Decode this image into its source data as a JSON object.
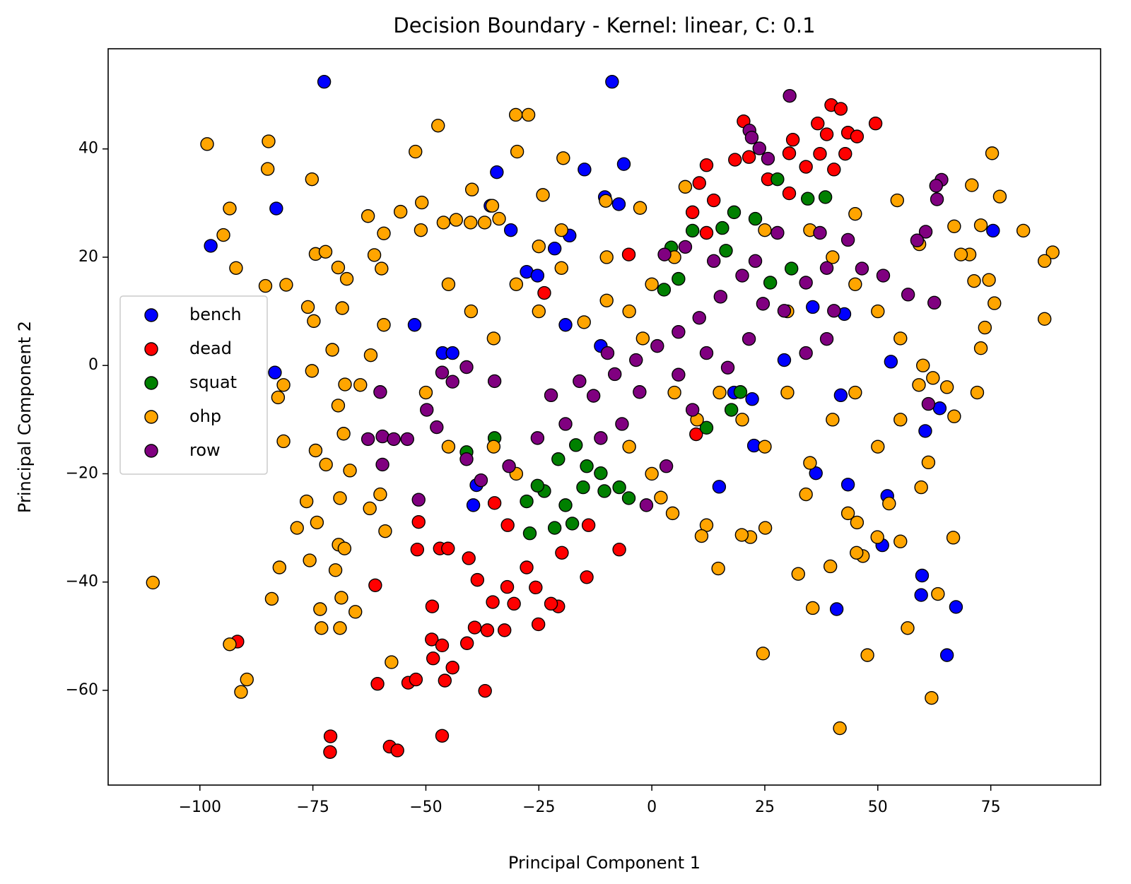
{
  "chart_data": {
    "type": "scatter",
    "title": "Decision Boundary - Kernel: linear, C: 0.1",
    "x_label": "Principal Component 1",
    "y_label": "Principal Component 2",
    "xlim": [
      -120.3,
      99.3
    ],
    "ylim": [
      -77.5,
      58.5
    ],
    "xticks": [
      {
        "value": -100,
        "label": "−100"
      },
      {
        "value": -75,
        "label": "−75"
      },
      {
        "value": -50,
        "label": "−50"
      },
      {
        "value": -25,
        "label": "−25"
      },
      0,
      25,
      50,
      75
    ],
    "yticks": [
      {
        "value": -60,
        "label": "−60"
      },
      {
        "value": -40,
        "label": "−40"
      },
      {
        "value": -20,
        "label": "−20"
      },
      0,
      20,
      40
    ],
    "legend": "center left",
    "edge_color": "#000000",
    "series": [
      {
        "name": "bench",
        "color": "#0000ff",
        "x": [
          -72.5,
          -8.8,
          -97.6,
          -83.1,
          -83.4,
          -34.3,
          -14.9,
          -6.2,
          -10.4,
          -7.3,
          -35.7,
          -31.2,
          -18.2,
          -21.5,
          75.5,
          59.8,
          59.6,
          67.3,
          65.3,
          40.9,
          51.0,
          52.1,
          43.4,
          22.6,
          14.9,
          18.2,
          22.2,
          -52.5,
          -46.3,
          -44.1,
          -38.8,
          -39.5,
          -27.7,
          -25.3,
          35.6,
          42.6,
          41.8,
          36.3,
          63.7,
          60.5,
          52.9,
          29.3,
          -11.3,
          -19.1
        ],
        "values": [
          52.4,
          52.4,
          22.1,
          29.0,
          -1.3,
          35.7,
          36.2,
          37.2,
          31.1,
          29.8,
          29.5,
          25.0,
          24.0,
          21.6,
          24.9,
          -38.8,
          -42.4,
          -44.6,
          -53.5,
          -45.0,
          -33.2,
          -24.1,
          -22.0,
          -14.8,
          -22.4,
          -5.0,
          -6.2,
          7.5,
          2.3,
          2.3,
          -22.1,
          -25.8,
          17.3,
          16.6,
          10.8,
          9.5,
          -5.5,
          -19.9,
          -7.9,
          -12.1,
          0.7,
          1.0,
          3.6,
          7.5
        ]
      },
      {
        "name": "dead",
        "color": "#ff0000",
        "x": [
          -71.1,
          -71.2,
          -58.0,
          -56.3,
          -46.4,
          -36.9,
          -60.7,
          -53.9,
          -52.2,
          -45.8,
          -44.1,
          -91.7,
          -61.2,
          -48.6,
          -48.7,
          -48.4,
          -46.4,
          -40.9,
          -39.2,
          -36.4,
          -32.6,
          -25.1,
          -20.7,
          -51.9,
          -51.6,
          -46.9,
          -45.1,
          -40.5,
          -38.6,
          -35.2,
          -32.0,
          -30.5,
          -27.7,
          -25.7,
          -22.3,
          -19.9,
          -14.4,
          -7.2,
          -34.8,
          -31.9,
          -14.0,
          20.3,
          39.7,
          41.8,
          49.5,
          36.7,
          43.4,
          45.4,
          38.7,
          31.2,
          42.8,
          37.2,
          30.4,
          34.1,
          40.3,
          12.1,
          18.4,
          21.5,
          10.5,
          13.7,
          25.7,
          30.4,
          9.0,
          12.1,
          -5.1,
          -23.8,
          9.8
        ],
        "values": [
          -68.5,
          -71.4,
          -70.4,
          -71.1,
          -68.4,
          -60.1,
          -58.8,
          -58.6,
          -58.0,
          -58.2,
          -55.8,
          -51.0,
          -40.6,
          -44.5,
          -50.6,
          -54.1,
          -51.7,
          -51.3,
          -48.4,
          -48.9,
          -48.9,
          -47.8,
          -44.5,
          -34.0,
          -28.9,
          -33.8,
          -33.8,
          -35.6,
          -39.6,
          -43.7,
          -40.9,
          -44.0,
          -37.3,
          -41.0,
          -44.0,
          -34.6,
          -39.1,
          -34.0,
          -25.4,
          -29.5,
          -29.5,
          45.1,
          48.1,
          47.4,
          44.7,
          44.7,
          43.0,
          42.3,
          42.7,
          41.7,
          39.1,
          39.1,
          39.2,
          36.7,
          36.2,
          37.0,
          38.0,
          38.5,
          33.7,
          30.5,
          34.4,
          31.8,
          28.3,
          24.5,
          20.5,
          13.4,
          -12.7
        ]
      },
      {
        "name": "squat",
        "color": "#008000",
        "x": [
          -27.0,
          -21.5,
          -17.6,
          -23.8,
          -19.1,
          -15.2,
          -10.5,
          -7.2,
          -5.1,
          -27.7,
          -25.3,
          -20.7,
          -14.4,
          -11.3,
          -16.8,
          34.5,
          38.4,
          27.8,
          9.0,
          15.6,
          18.2,
          22.9,
          16.4,
          4.3,
          5.9,
          17.6,
          19.6,
          12.1,
          -41.0,
          -34.8,
          2.7,
          26.2,
          30.9
        ],
        "values": [
          -31.0,
          -30.0,
          -29.2,
          -23.2,
          -25.8,
          -22.5,
          -23.2,
          -22.5,
          -24.5,
          -25.1,
          -22.2,
          -17.3,
          -18.6,
          -19.9,
          -14.7,
          30.8,
          31.1,
          34.4,
          24.9,
          25.4,
          28.3,
          27.1,
          21.2,
          21.8,
          16.0,
          -8.2,
          -4.9,
          -11.5,
          -16.0,
          -13.4,
          14.0,
          15.3,
          17.9
        ]
      },
      {
        "name": "ohp",
        "color": "#ffa500",
        "x": [
          -110.4,
          -98.4,
          -93.4,
          -94.8,
          -92.0,
          -93.4,
          -90.9,
          -89.6,
          -84.8,
          -85.0,
          -85.5,
          -80.9,
          -84.1,
          -82.4,
          -82.7,
          -81.5,
          -81.5,
          -75.2,
          -74.4,
          -72.2,
          -76.1,
          -74.8,
          -75.2,
          -74.4,
          -76.4,
          -78.5,
          -74.1,
          -75.7,
          -73.4,
          -73.1,
          -69.0,
          -69.4,
          -67.5,
          -68.5,
          -70.7,
          -67.9,
          -69.4,
          -68.2,
          -72.1,
          -69.0,
          -69.3,
          -68.0,
          -70.0,
          -68.7,
          -65.6,
          -62.8,
          -61.4,
          -59.3,
          -59.8,
          -59.3,
          -62.2,
          -64.5,
          -66.8,
          -62.4,
          -60.1,
          -59.0,
          -57.6,
          -52.3,
          -50.9,
          -55.6,
          -51.1,
          -47.3,
          -30.1,
          -27.3,
          -29.8,
          -39.8,
          -35.3,
          -46.1,
          -43.3,
          -40.1,
          -37.0,
          -33.8,
          -24.1,
          -19.6,
          -10.2,
          -2.6,
          7.4,
          54.3,
          59.2,
          70.8,
          75.3,
          77.0,
          82.2,
          88.7,
          86.9,
          86.9,
          71.3,
          74.6,
          75.8,
          73.7,
          72.8,
          72.0,
          70.3,
          66.9,
          68.4,
          72.8,
          65.3,
          66.9,
          62.2,
          59.1,
          61.2,
          59.6,
          66.7,
          63.3,
          61.9,
          56.6,
          55.0,
          49.9,
          47.7,
          46.7,
          45.3,
          41.6,
          39.5,
          35.6,
          32.4,
          24.6,
          25.1,
          21.8,
          19.9,
          14.7,
          12.1,
          11.0,
          4.6,
          2.0,
          45.4,
          52.5,
          43.4,
          34.1,
          -30,
          -25,
          -20,
          -15,
          -10,
          -5,
          0,
          5,
          -35,
          -40,
          -45,
          -50,
          -45,
          -35,
          -30,
          20,
          25,
          30,
          35,
          40,
          45,
          50,
          15,
          10,
          0,
          -5,
          30,
          40,
          45,
          50,
          55,
          -10,
          -20,
          -25,
          25,
          35,
          45,
          55,
          60,
          5,
          -2
        ],
        "values": [
          -40.1,
          40.9,
          29.0,
          24.1,
          18.0,
          -51.5,
          -60.3,
          -58.0,
          41.4,
          36.3,
          14.7,
          14.9,
          -43.1,
          -37.3,
          -5.9,
          -3.6,
          -14.0,
          34.4,
          20.6,
          21.0,
          10.8,
          8.2,
          -1.0,
          -15.7,
          -25.1,
          -30.0,
          -29.0,
          -36.0,
          -45.0,
          -48.5,
          -48.5,
          18.1,
          16.0,
          10.6,
          2.9,
          -3.5,
          -7.4,
          -12.6,
          -18.3,
          -24.5,
          -33.1,
          -33.8,
          -37.8,
          -42.9,
          -45.5,
          27.6,
          20.4,
          24.4,
          17.9,
          7.5,
          1.9,
          -3.6,
          -19.4,
          -26.4,
          -23.8,
          -30.6,
          -54.8,
          39.5,
          30.1,
          28.4,
          25.0,
          44.3,
          46.3,
          46.3,
          39.5,
          32.5,
          29.5,
          26.4,
          26.9,
          26.4,
          26.4,
          27.1,
          31.5,
          38.3,
          30.4,
          29.1,
          33.0,
          30.5,
          22.4,
          33.3,
          39.2,
          31.2,
          24.9,
          20.9,
          19.3,
          8.6,
          15.6,
          15.8,
          11.5,
          7.0,
          3.2,
          -5.0,
          20.5,
          25.7,
          20.5,
          25.9,
          -4.0,
          -9.4,
          -2.3,
          -3.6,
          -17.9,
          -22.5,
          -31.8,
          -42.2,
          -61.4,
          -48.5,
          -32.5,
          -31.7,
          -53.5,
          -35.2,
          -34.6,
          -67.0,
          -37.1,
          -44.8,
          -38.5,
          -53.2,
          -30.0,
          -31.7,
          -31.3,
          -37.5,
          -29.5,
          -31.5,
          -27.3,
          -24.4,
          -29.0,
          -25.5,
          -27.3,
          -23.8,
          15,
          10,
          18,
          8,
          12,
          10,
          15,
          20,
          5,
          10,
          15,
          -5,
          -15,
          -15,
          -20,
          -10,
          -15,
          -5,
          -18,
          -10,
          -5,
          -15,
          -5,
          -10,
          -20,
          -15,
          10,
          20,
          15,
          10,
          5,
          20,
          25,
          22,
          25,
          25,
          28,
          -10,
          0,
          -5,
          5
        ]
      },
      {
        "name": "row",
        "color": "#800080",
        "x": [
          30.5,
          21.6,
          22.1,
          23.8,
          25.7,
          64.1,
          62.9,
          63.1,
          60.6,
          58.7,
          56.7,
          62.5,
          61.2,
          -62.8,
          -59.6,
          -57.1,
          -54.1,
          -59.6,
          -60.1,
          -51.6,
          -47.6,
          -46.4,
          -44.1,
          -49.8,
          -41.0,
          -37.8,
          -31.6,
          -25.3,
          -19.1,
          -12.9,
          -8.2,
          -3.5,
          1.2,
          5.9,
          10.5,
          15.2,
          20.0,
          24.6,
          29.3,
          34.1,
          38.7,
          43.4,
          46.5,
          51.2,
          27.8,
          22.9,
          13.7,
          7.4,
          2.8,
          -1.2,
          3.2,
          9.0,
          -6.6,
          -11.3,
          -16.0,
          -22.3,
          -34.8,
          -41.0,
          34.1,
          38.7,
          21.5,
          16.8,
          12.1,
          5.9,
          -2.7,
          -9.8,
          40.3,
          37.2
        ],
        "values": [
          49.8,
          43.4,
          42.1,
          40.1,
          38.2,
          34.3,
          33.2,
          30.7,
          24.7,
          23.1,
          13.1,
          11.6,
          -7.1,
          -13.6,
          -13.1,
          -13.6,
          -13.6,
          -18.3,
          -4.9,
          -24.8,
          -11.4,
          -1.3,
          -3.0,
          -8.2,
          -17.3,
          -21.2,
          -18.6,
          -13.4,
          -10.8,
          -5.6,
          -1.6,
          1.0,
          3.6,
          6.2,
          8.8,
          12.7,
          16.6,
          11.4,
          10.1,
          15.3,
          18.0,
          23.2,
          17.9,
          16.6,
          24.5,
          19.3,
          19.3,
          21.9,
          20.5,
          -25.8,
          -18.6,
          -8.2,
          -10.8,
          -13.4,
          -2.9,
          -5.5,
          -2.9,
          -0.3,
          2.3,
          4.9,
          4.9,
          -0.4,
          2.3,
          -1.7,
          -4.9,
          2.3,
          10.1,
          24.5
        ]
      }
    ]
  }
}
